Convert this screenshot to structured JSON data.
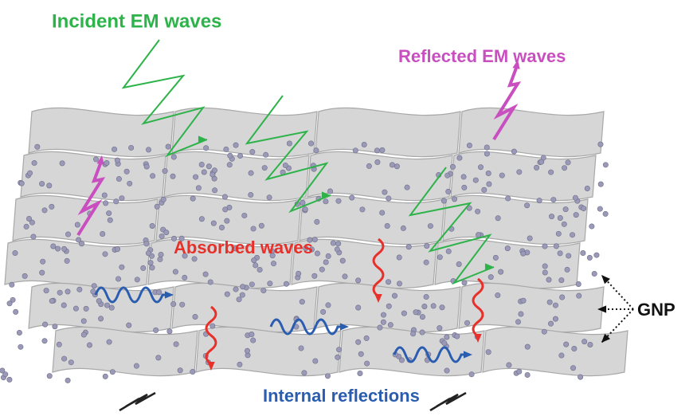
{
  "labels": {
    "incident": "Incident EM waves",
    "reflected": "Reflected EM waves",
    "absorbed": "Absorbed waves",
    "internal": "Internal reflections",
    "gnp": "GNP"
  }
}
